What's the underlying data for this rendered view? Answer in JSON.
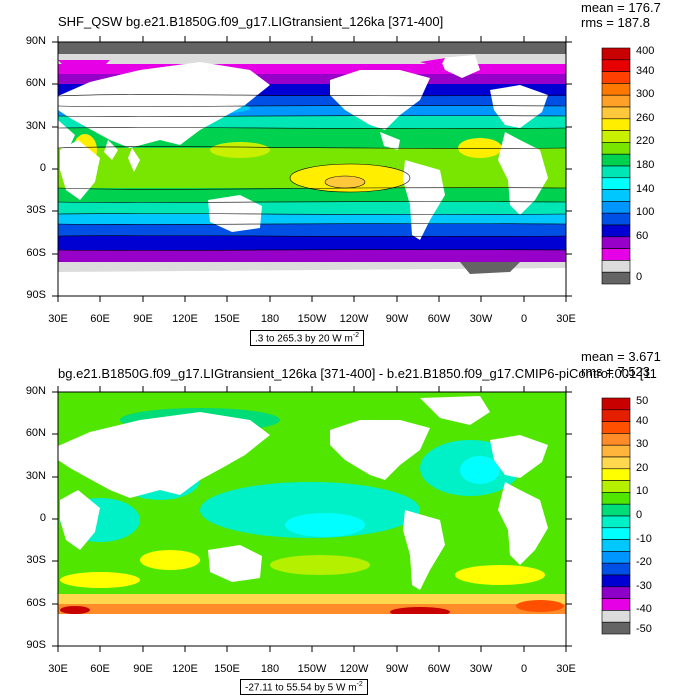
{
  "panels": [
    {
      "title": "SHF_QSW bg.e21.B1850G.f09_g17.LIGtransient_126ka [371-400]",
      "mean_text": "mean = 176.7",
      "rms_text": "rms = 187.8",
      "info_text": ".3 to 265.3 by 20  W m",
      "info_sup": "-2",
      "lat_labels": [
        "90N",
        "60N",
        "30N",
        "0",
        "30S",
        "60S",
        "90S"
      ],
      "lon_labels": [
        "30E",
        "60E",
        "90E",
        "120E",
        "150E",
        "180",
        "150W",
        "120W",
        "90W",
        "60W",
        "30W",
        "0",
        "30E"
      ],
      "colorbar_labels": [
        "400",
        "340",
        "300",
        "260",
        "220",
        "180",
        "140",
        "100",
        "60",
        "0"
      ],
      "colorbar_colors": [
        "#c80000",
        "#e60000",
        "#ff4000",
        "#ff7800",
        "#ffa028",
        "#ffc83c",
        "#ffee00",
        "#c8f000",
        "#78e600",
        "#00d250",
        "#00e6b4",
        "#00ffff",
        "#00c8ff",
        "#0096ff",
        "#0050e6",
        "#0000d2",
        "#9600c8",
        "#e600e6",
        "#dcdcdc",
        "#646464"
      ]
    },
    {
      "title": "bg.e21.B1850G.f09_g17.LIGtransient_126ka [371-400] - b.e21.B1850.f09_g17.CMIP6-piControl.001 [11",
      "mean_text": "mean = 3.671",
      "rms_text": "rms = 7.523",
      "info_text": "-27.11 to 55.54 by 5  W m",
      "info_sup": "-2",
      "lat_labels": [
        "90N",
        "60N",
        "30N",
        "0",
        "30S",
        "60S",
        "90S"
      ],
      "lon_labels": [
        "30E",
        "60E",
        "90E",
        "120E",
        "150E",
        "180",
        "150W",
        "120W",
        "90W",
        "60W",
        "30W",
        "0",
        "30E"
      ],
      "colorbar_labels": [
        "50",
        "40",
        "30",
        "20",
        "10",
        "0",
        "-10",
        "-20",
        "-30",
        "-40",
        "-50"
      ],
      "colorbar_colors": [
        "#c80000",
        "#e61e00",
        "#ff5000",
        "#ff8c28",
        "#ffb43c",
        "#ffd850",
        "#ffff00",
        "#b4f000",
        "#50e600",
        "#00dc78",
        "#00f0c8",
        "#00ffff",
        "#00c8ff",
        "#0096ff",
        "#0050e6",
        "#0000d2",
        "#8c00c8",
        "#e600e6",
        "#dcdcdc",
        "#646464"
      ]
    }
  ]
}
